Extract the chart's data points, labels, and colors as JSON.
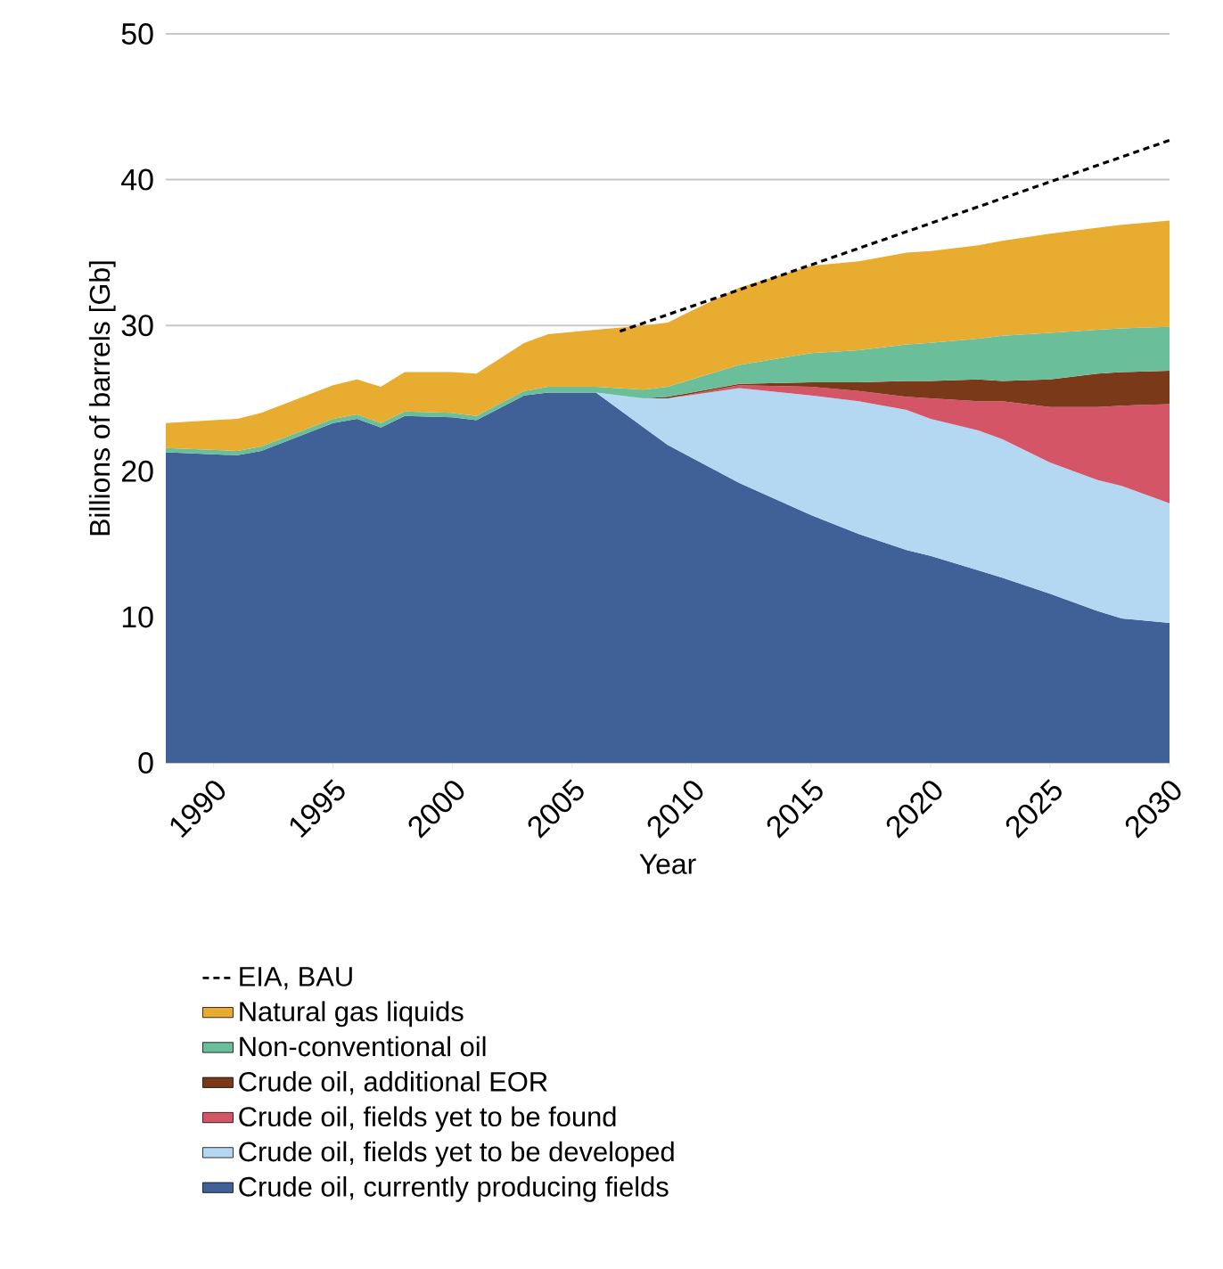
{
  "chart_data": {
    "type": "area",
    "xlabel": "Year",
    "ylabel": "Billions of barrels [Gb]",
    "x": [
      1988,
      1991,
      1992,
      1995,
      1996,
      1997,
      1998,
      2000,
      2001,
      2003,
      2004,
      2006,
      2008,
      2009,
      2012,
      2015,
      2017,
      2019,
      2020,
      2022,
      2023,
      2025,
      2027,
      2028,
      2030
    ],
    "stacked": true,
    "series": [
      {
        "name": "Crude oil, currently producing fields",
        "color": "#3f6198",
        "values": [
          21.3,
          21.1,
          21.4,
          23.3,
          23.6,
          23.0,
          23.8,
          23.7,
          23.5,
          25.2,
          25.4,
          25.4,
          23.0,
          21.8,
          19.2,
          17.0,
          15.7,
          14.6,
          14.2,
          13.2,
          12.7,
          11.6,
          10.4,
          9.9,
          9.6
        ]
      },
      {
        "name": "Crude oil, fields yet to be developed",
        "color": "#b5d8f2",
        "values": [
          0,
          0,
          0,
          0,
          0,
          0,
          0,
          0,
          0,
          0,
          0,
          0,
          2.0,
          3.2,
          6.5,
          8.2,
          9.1,
          9.6,
          9.4,
          9.6,
          9.5,
          9.0,
          9.0,
          9.1,
          8.2
        ]
      },
      {
        "name": "Crude oil, fields yet to be found",
        "color": "#d45565",
        "values": [
          0,
          0,
          0,
          0,
          0,
          0,
          0,
          0,
          0,
          0,
          0,
          0,
          0,
          0,
          0.2,
          0.6,
          0.7,
          0.9,
          1.4,
          2.0,
          2.6,
          3.8,
          5.0,
          5.5,
          6.8
        ]
      },
      {
        "name": "Crude oil, additional EOR",
        "color": "#7a3a1a",
        "values": [
          0,
          0,
          0,
          0,
          0,
          0,
          0,
          0,
          0,
          0,
          0,
          0,
          0,
          0.1,
          0.1,
          0.3,
          0.6,
          1.1,
          1.2,
          1.5,
          1.4,
          1.9,
          2.3,
          2.3,
          2.3
        ]
      },
      {
        "name": "Non-conventional oil",
        "color": "#6abf9a",
        "values": [
          0.3,
          0.3,
          0.3,
          0.3,
          0.3,
          0.3,
          0.3,
          0.3,
          0.3,
          0.3,
          0.4,
          0.4,
          0.6,
          0.7,
          1.3,
          2.0,
          2.2,
          2.5,
          2.6,
          2.8,
          3.1,
          3.2,
          3.0,
          3.0,
          3.0
        ]
      },
      {
        "name": "Natural gas liquids",
        "color": "#e8ac30",
        "values": [
          1.7,
          2.2,
          2.3,
          2.3,
          2.4,
          2.5,
          2.7,
          2.8,
          2.9,
          3.3,
          3.6,
          3.9,
          4.4,
          4.4,
          5.3,
          6.0,
          6.1,
          6.3,
          6.3,
          6.4,
          6.5,
          6.8,
          7.0,
          7.1,
          7.3
        ]
      },
      {
        "name": "EIA, BAU",
        "type": "line",
        "color": "#000000",
        "line_style": "dashed",
        "x": [
          2007,
          2030
        ],
        "values": [
          29.6,
          42.7
        ]
      }
    ],
    "xlim": [
      1988,
      2030
    ],
    "xticks": [
      1990,
      1995,
      2000,
      2005,
      2010,
      2015,
      2020,
      2025,
      2030
    ],
    "ylim": [
      0,
      50
    ],
    "yticks": [
      0,
      10,
      20,
      30,
      40,
      50
    ],
    "grid": "y",
    "legend": "bottom"
  }
}
